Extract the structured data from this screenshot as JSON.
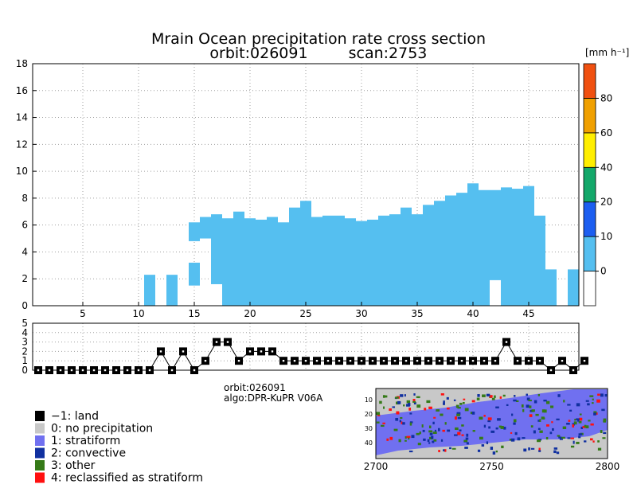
{
  "chart_data": {
    "type": "heatmap",
    "title": "Mrain Ocean precipitation rate cross section",
    "subtitle_orbit": "orbit:026091",
    "subtitle_scan": "scan:2753",
    "units": "[mm h⁻¹]",
    "x_ticks": [
      "5",
      "10",
      "15",
      "20",
      "25",
      "30",
      "35",
      "40",
      "45"
    ],
    "y_ticks": [
      "0",
      "2",
      "4",
      "6",
      "8",
      "10",
      "12",
      "14",
      "16",
      "18"
    ],
    "xlim": [
      0.5,
      49.5
    ],
    "ylim": [
      0,
      18
    ],
    "colorbar": {
      "levels": [
        "0",
        "10",
        "20",
        "40",
        "60",
        "80"
      ],
      "colors": [
        "#ffffff",
        "#55bff0",
        "#1c5ef0",
        "#13a86a",
        "#ffee00",
        "#f0a000",
        "#f05010"
      ]
    },
    "echo_color": "#55bff0",
    "columns": [
      {
        "ray": 11,
        "bottom": 0.0,
        "top": 2.3
      },
      {
        "ray": 13,
        "bottom": 0.0,
        "top": 2.3
      },
      {
        "ray": 15,
        "bottom": 1.5,
        "top": 3.2
      },
      {
        "ray": 15,
        "bottom": 4.8,
        "top": 6.2
      },
      {
        "ray": 16,
        "bottom": 5.0,
        "top": 6.6
      },
      {
        "ray": 17,
        "bottom": 1.6,
        "top": 6.8
      },
      {
        "ray": 18,
        "bottom": 0.0,
        "top": 6.5
      },
      {
        "ray": 19,
        "bottom": 0.0,
        "top": 7.0
      },
      {
        "ray": 20,
        "bottom": 0.0,
        "top": 6.5
      },
      {
        "ray": 21,
        "bottom": 0.0,
        "top": 6.4
      },
      {
        "ray": 22,
        "bottom": 0.0,
        "top": 6.6
      },
      {
        "ray": 23,
        "bottom": 0.0,
        "top": 6.2
      },
      {
        "ray": 24,
        "bottom": 0.0,
        "top": 7.3
      },
      {
        "ray": 25,
        "bottom": 0.0,
        "top": 7.8
      },
      {
        "ray": 26,
        "bottom": 0.0,
        "top": 6.6
      },
      {
        "ray": 27,
        "bottom": 0.0,
        "top": 6.7
      },
      {
        "ray": 28,
        "bottom": 0.0,
        "top": 6.7
      },
      {
        "ray": 29,
        "bottom": 0.0,
        "top": 6.5
      },
      {
        "ray": 30,
        "bottom": 0.0,
        "top": 6.3
      },
      {
        "ray": 31,
        "bottom": 0.0,
        "top": 6.4
      },
      {
        "ray": 32,
        "bottom": 0.0,
        "top": 6.7
      },
      {
        "ray": 33,
        "bottom": 0.0,
        "top": 6.8
      },
      {
        "ray": 34,
        "bottom": 0.0,
        "top": 7.3
      },
      {
        "ray": 35,
        "bottom": 0.0,
        "top": 6.8
      },
      {
        "ray": 36,
        "bottom": 0.0,
        "top": 7.5
      },
      {
        "ray": 37,
        "bottom": 0.0,
        "top": 7.8
      },
      {
        "ray": 38,
        "bottom": 0.0,
        "top": 8.2
      },
      {
        "ray": 39,
        "bottom": 0.0,
        "top": 8.4
      },
      {
        "ray": 40,
        "bottom": 0.0,
        "top": 9.1
      },
      {
        "ray": 41,
        "bottom": 0.0,
        "top": 8.6
      },
      {
        "ray": 42,
        "bottom": 1.9,
        "top": 8.6
      },
      {
        "ray": 43,
        "bottom": 0.0,
        "top": 8.8
      },
      {
        "ray": 44,
        "bottom": 0.0,
        "top": 8.7
      },
      {
        "ray": 45,
        "bottom": 0.0,
        "top": 8.9
      },
      {
        "ray": 46,
        "bottom": 0.0,
        "top": 6.7
      },
      {
        "ray": 47,
        "bottom": 0.0,
        "top": 2.7
      },
      {
        "ray": 49,
        "bottom": 0.0,
        "top": 2.7
      }
    ],
    "rain_type_yticks": [
      "0",
      "1",
      "2",
      "3",
      "4",
      "5"
    ],
    "rain_type": [
      0,
      0,
      0,
      0,
      0,
      0,
      0,
      0,
      0,
      0,
      0,
      2,
      0,
      2,
      0,
      1,
      3,
      3,
      1,
      2,
      2,
      2,
      1,
      1,
      1,
      1,
      1,
      1,
      1,
      1,
      1,
      1,
      1,
      1,
      1,
      1,
      1,
      1,
      1,
      1,
      1,
      1,
      3,
      1,
      1,
      1,
      0,
      1,
      0,
      1
    ],
    "info_orbit": "orbit:026091",
    "info_algo": "algo:DPR-KuPR V06A",
    "legend": [
      {
        "label": "−1: land",
        "color": "#000000"
      },
      {
        "label": "0: no precipitation",
        "color": "#c8c8c8"
      },
      {
        "label": "1: stratiform",
        "color": "#7070f0"
      },
      {
        "label": "2: convective",
        "color": "#1030a0"
      },
      {
        "label": "3: other",
        "color": "#357a18"
      },
      {
        "label": "4: reclassified as stratiform",
        "color": "#ff1010"
      }
    ],
    "map_x_ticks": [
      "2700",
      "2750",
      "2800"
    ],
    "map_y_ticks": [
      "10",
      "20",
      "30",
      "40"
    ]
  }
}
